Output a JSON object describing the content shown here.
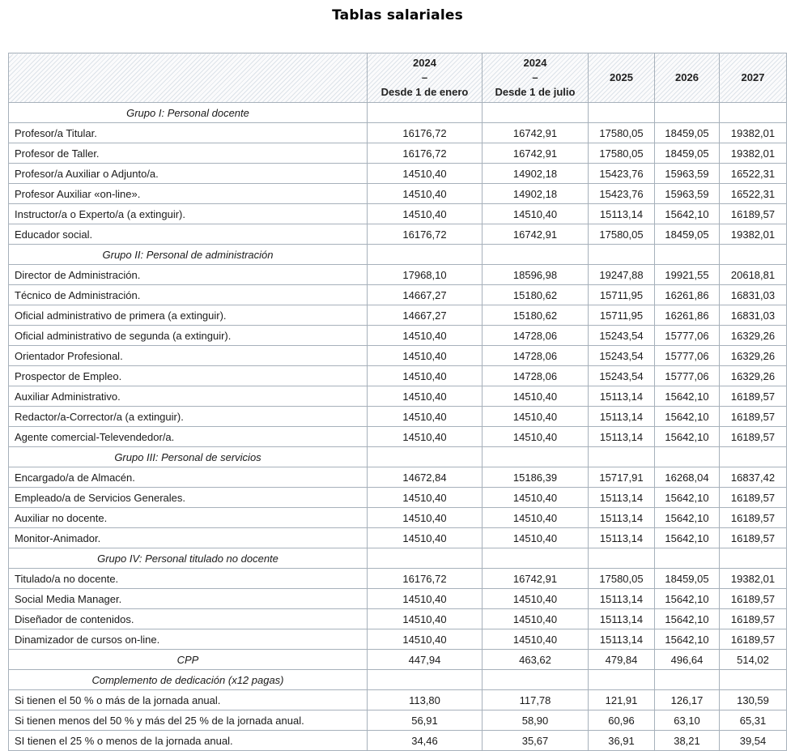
{
  "title": "Tablas salariales",
  "table": {
    "header": {
      "cols": [
        {
          "line1": "2024",
          "line2": "–",
          "line3": "Desde 1 de enero"
        },
        {
          "line1": "2024",
          "line2": "–",
          "line3": "Desde 1 de julio"
        },
        {
          "line1": "2025"
        },
        {
          "line1": "2026"
        },
        {
          "line1": "2027"
        }
      ]
    },
    "rows": [
      {
        "type": "group",
        "label": "Grupo I: Personal docente"
      },
      {
        "type": "data",
        "label": "Profesor/a Titular.",
        "values": [
          "16176,72",
          "16742,91",
          "17580,05",
          "18459,05",
          "19382,01"
        ]
      },
      {
        "type": "data",
        "label": "Profesor de Taller.",
        "values": [
          "16176,72",
          "16742,91",
          "17580,05",
          "18459,05",
          "19382,01"
        ]
      },
      {
        "type": "data",
        "label": "Profesor/a Auxiliar o Adjunto/a.",
        "values": [
          "14510,40",
          "14902,18",
          "15423,76",
          "15963,59",
          "16522,31"
        ]
      },
      {
        "type": "data",
        "label": "Profesor Auxiliar «on-line».",
        "values": [
          "14510,40",
          "14902,18",
          "15423,76",
          "15963,59",
          "16522,31"
        ]
      },
      {
        "type": "data",
        "label": "Instructor/a o Experto/a (a extinguir).",
        "values": [
          "14510,40",
          "14510,40",
          "15113,14",
          "15642,10",
          "16189,57"
        ]
      },
      {
        "type": "data",
        "label": "Educador social.",
        "values": [
          "16176,72",
          "16742,91",
          "17580,05",
          "18459,05",
          "19382,01"
        ]
      },
      {
        "type": "group",
        "label": "Grupo II: Personal de administración"
      },
      {
        "type": "data",
        "label": "Director de Administración.",
        "values": [
          "17968,10",
          "18596,98",
          "19247,88",
          "19921,55",
          "20618,81"
        ]
      },
      {
        "type": "data",
        "label": "Técnico de Administración.",
        "values": [
          "14667,27",
          "15180,62",
          "15711,95",
          "16261,86",
          "16831,03"
        ]
      },
      {
        "type": "data",
        "label": "Oficial administrativo de primera (a extinguir).",
        "values": [
          "14667,27",
          "15180,62",
          "15711,95",
          "16261,86",
          "16831,03"
        ]
      },
      {
        "type": "data",
        "label": "Oficial administrativo de segunda (a extinguir).",
        "values": [
          "14510,40",
          "14728,06",
          "15243,54",
          "15777,06",
          "16329,26"
        ]
      },
      {
        "type": "data",
        "label": "Orientador Profesional.",
        "values": [
          "14510,40",
          "14728,06",
          "15243,54",
          "15777,06",
          "16329,26"
        ]
      },
      {
        "type": "data",
        "label": "Prospector de Empleo.",
        "values": [
          "14510,40",
          "14728,06",
          "15243,54",
          "15777,06",
          "16329,26"
        ]
      },
      {
        "type": "data",
        "label": "Auxiliar Administrativo.",
        "values": [
          "14510,40",
          "14510,40",
          "15113,14",
          "15642,10",
          "16189,57"
        ]
      },
      {
        "type": "data",
        "label": "Redactor/a-Corrector/a (a extinguir).",
        "values": [
          "14510,40",
          "14510,40",
          "15113,14",
          "15642,10",
          "16189,57"
        ]
      },
      {
        "type": "data",
        "label": "Agente comercial-Televendedor/a.",
        "values": [
          "14510,40",
          "14510,40",
          "15113,14",
          "15642,10",
          "16189,57"
        ]
      },
      {
        "type": "group",
        "label": "Grupo III: Personal de servicios"
      },
      {
        "type": "data",
        "label": "Encargado/a de Almacén.",
        "values": [
          "14672,84",
          "15186,39",
          "15717,91",
          "16268,04",
          "16837,42"
        ]
      },
      {
        "type": "data",
        "label": "Empleado/a de Servicios Generales.",
        "values": [
          "14510,40",
          "14510,40",
          "15113,14",
          "15642,10",
          "16189,57"
        ]
      },
      {
        "type": "data",
        "label": "Auxiliar no docente.",
        "values": [
          "14510,40",
          "14510,40",
          "15113,14",
          "15642,10",
          "16189,57"
        ]
      },
      {
        "type": "data",
        "label": "Monitor-Animador.",
        "values": [
          "14510,40",
          "14510,40",
          "15113,14",
          "15642,10",
          "16189,57"
        ]
      },
      {
        "type": "group",
        "label": "Grupo IV: Personal titulado no docente"
      },
      {
        "type": "data",
        "label": "Titulado/a no docente.",
        "values": [
          "16176,72",
          "16742,91",
          "17580,05",
          "18459,05",
          "19382,01"
        ]
      },
      {
        "type": "data",
        "label": "Social Media Manager.",
        "values": [
          "14510,40",
          "14510,40",
          "15113,14",
          "15642,10",
          "16189,57"
        ]
      },
      {
        "type": "data",
        "label": "Diseñador de contenidos.",
        "values": [
          "14510,40",
          "14510,40",
          "15113,14",
          "15642,10",
          "16189,57"
        ]
      },
      {
        "type": "data",
        "label": "Dinamizador de cursos on-line.",
        "values": [
          "14510,40",
          "14510,40",
          "15113,14",
          "15642,10",
          "16189,57"
        ]
      },
      {
        "type": "data",
        "label": "CPP",
        "label_center": true,
        "values": [
          "447,94",
          "463,62",
          "479,84",
          "496,64",
          "514,02"
        ]
      },
      {
        "type": "group",
        "label": "Complemento de dedicación (x12 pagas)"
      },
      {
        "type": "data",
        "label": "Si tienen el 50 % o más de la jornada anual.",
        "values": [
          "113,80",
          "117,78",
          "121,91",
          "126,17",
          "130,59"
        ]
      },
      {
        "type": "data",
        "label": "Si tienen menos del 50 % y más del 25 % de la jornada anual.",
        "values": [
          "56,91",
          "58,90",
          "60,96",
          "63,10",
          "65,31"
        ]
      },
      {
        "type": "data",
        "label": "SI tienen el 25 % o menos de la jornada anual.",
        "values": [
          "34,46",
          "35,67",
          "36,91",
          "38,21",
          "39,54"
        ]
      }
    ]
  }
}
